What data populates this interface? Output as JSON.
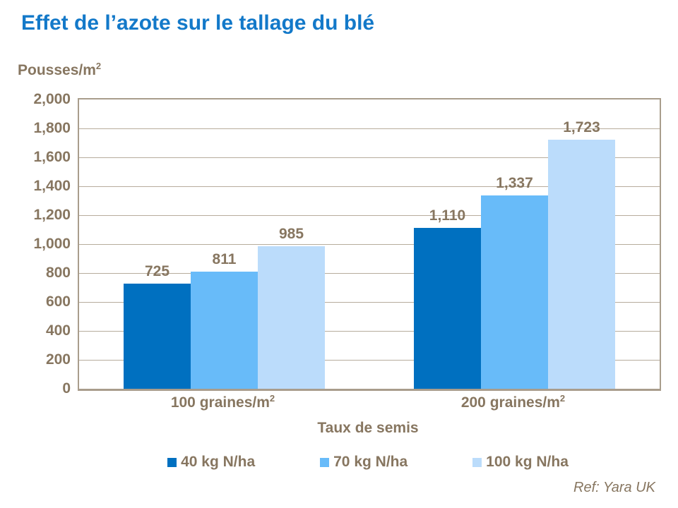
{
  "footer": {
    "ref": "Ref: Yara UK"
  },
  "colors": {
    "title_blue": "#1379C9",
    "text_taupe": "#877660",
    "gridline": "#B7AC9C",
    "axis_border": "#A99D8C"
  },
  "chart_data": {
    "type": "bar",
    "title": "Effet de l’azote sur le tallage du blé",
    "ylabel_base": "Pousses/m",
    "ylabel_sup": "2",
    "xlabel": "Taux de semis",
    "ylim": [
      0,
      2000
    ],
    "y_tick_step": 200,
    "y_ticks": [
      "2,000",
      "1,800",
      "1,600",
      "1,400",
      "1,200",
      "1,000",
      "800",
      "600",
      "400",
      "200",
      "0"
    ],
    "grid": "horizontal",
    "legend_position": "bottom",
    "categories": [
      {
        "base": "100 graines/m",
        "sup": "2"
      },
      {
        "base": "200 graines/m",
        "sup": "2"
      }
    ],
    "series": [
      {
        "name": "40 kg N/ha",
        "color": "#0070C0",
        "values": [
          725,
          1110
        ],
        "labels": [
          "725",
          "1,110"
        ]
      },
      {
        "name": "70 kg N/ha",
        "color": "#68BBF9",
        "values": [
          811,
          1337
        ],
        "labels": [
          "811",
          "1,337"
        ]
      },
      {
        "name": "100 kg N/ha",
        "color": "#BBDCFB",
        "values": [
          985,
          1723
        ],
        "labels": [
          "985",
          "1,723"
        ]
      }
    ]
  }
}
